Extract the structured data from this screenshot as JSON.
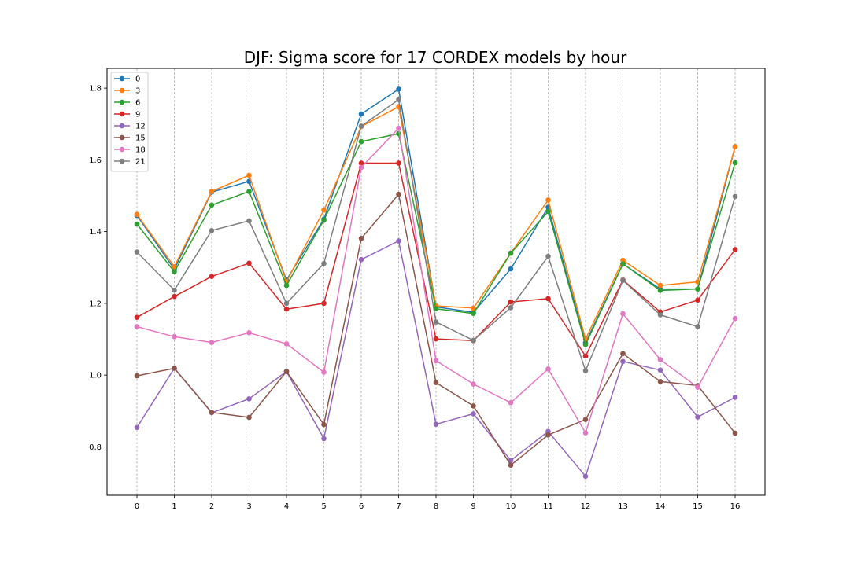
{
  "chart_data": {
    "type": "line",
    "title": "DJF: Sigma score for 17 CORDEX models by hour",
    "xlabel": "",
    "ylabel": "",
    "x": [
      0,
      1,
      2,
      3,
      4,
      5,
      6,
      7,
      8,
      9,
      10,
      11,
      12,
      13,
      14,
      15,
      16
    ],
    "xlim": [
      -0.8,
      16.8
    ],
    "ylim": [
      0.665,
      1.855
    ],
    "yticks": [
      0.8,
      1.0,
      1.2,
      1.4,
      1.6,
      1.8
    ],
    "grid": "vertical dashed",
    "legend_position": "top-left",
    "series": [
      {
        "name": "0",
        "color": "#1f77b4",
        "values": [
          1.445,
          1.295,
          1.51,
          1.54,
          1.265,
          1.435,
          1.728,
          1.797,
          1.19,
          1.175,
          1.296,
          1.468,
          1.09,
          1.31,
          1.24,
          1.24,
          1.637
        ]
      },
      {
        "name": "3",
        "color": "#ff7f0e",
        "values": [
          1.448,
          1.302,
          1.512,
          1.557,
          1.26,
          1.46,
          1.693,
          1.748,
          1.193,
          1.187,
          1.34,
          1.488,
          1.1,
          1.32,
          1.25,
          1.26,
          1.637
        ]
      },
      {
        "name": "6",
        "color": "#2ca02c",
        "values": [
          1.421,
          1.288,
          1.474,
          1.512,
          1.25,
          1.432,
          1.651,
          1.673,
          1.185,
          1.172,
          1.34,
          1.456,
          1.085,
          1.31,
          1.236,
          1.24,
          1.592
        ]
      },
      {
        "name": "9",
        "color": "#d62728",
        "values": [
          1.161,
          1.219,
          1.275,
          1.312,
          1.184,
          1.2,
          1.591,
          1.591,
          1.101,
          1.096,
          1.204,
          1.213,
          1.053,
          1.265,
          1.176,
          1.209,
          1.35
        ]
      },
      {
        "name": "12",
        "color": "#9467bd",
        "values": [
          0.854,
          1.019,
          0.895,
          0.934,
          1.01,
          0.823,
          1.322,
          1.374,
          0.863,
          0.892,
          0.762,
          0.843,
          0.718,
          1.038,
          1.014,
          0.883,
          0.938
        ]
      },
      {
        "name": "15",
        "color": "#8c564b",
        "values": [
          0.998,
          1.019,
          0.896,
          0.882,
          1.01,
          0.862,
          1.381,
          1.504,
          0.979,
          0.914,
          0.749,
          0.833,
          0.876,
          1.06,
          0.982,
          0.971,
          0.838
        ]
      },
      {
        "name": "18",
        "color": "#e377c2",
        "values": [
          1.135,
          1.107,
          1.091,
          1.118,
          1.087,
          1.008,
          1.579,
          1.688,
          1.04,
          0.975,
          0.923,
          1.017,
          0.839,
          1.171,
          1.043,
          0.966,
          1.158
        ]
      },
      {
        "name": "21",
        "color": "#7f7f7f",
        "values": [
          1.343,
          1.237,
          1.403,
          1.43,
          1.2,
          1.311,
          1.694,
          1.768,
          1.148,
          1.097,
          1.188,
          1.331,
          1.012,
          1.264,
          1.168,
          1.135,
          1.498
        ]
      }
    ]
  }
}
